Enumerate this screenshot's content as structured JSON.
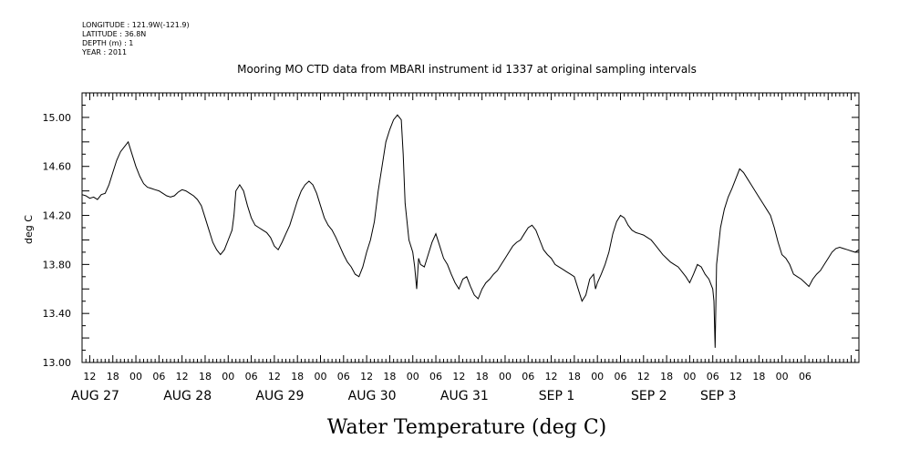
{
  "metadata": {
    "lines": [
      "LONGITUDE : 121.9W(-121.9)",
      "LATITUDE : 36.8N",
      "DEPTH (m) : 1",
      "YEAR : 2011"
    ]
  },
  "chart_data": {
    "type": "line",
    "title": "Mooring MO CTD data from MBARI instrument id 1337 at original sampling intervals",
    "ylabel": "deg C",
    "xlabel": "Water Temperature (deg C)",
    "ylim": [
      13.0,
      15.2
    ],
    "yticks": [
      13.0,
      13.4,
      13.8,
      14.2,
      14.6,
      15.0
    ],
    "ytick_labels": [
      "13.00",
      "13.40",
      "13.80",
      "14.20",
      "14.60",
      "15.00"
    ],
    "x_range_hours": [
      10,
      212
    ],
    "hour_ticks": [
      {
        "h": 12,
        "label": "12"
      },
      {
        "h": 18,
        "label": "18"
      },
      {
        "h": 24,
        "label": "00"
      },
      {
        "h": 30,
        "label": "06"
      },
      {
        "h": 36,
        "label": "12"
      },
      {
        "h": 42,
        "label": "18"
      },
      {
        "h": 48,
        "label": "00"
      },
      {
        "h": 54,
        "label": "06"
      },
      {
        "h": 60,
        "label": "12"
      },
      {
        "h": 66,
        "label": "18"
      },
      {
        "h": 72,
        "label": "00"
      },
      {
        "h": 78,
        "label": "06"
      },
      {
        "h": 84,
        "label": "12"
      },
      {
        "h": 90,
        "label": "18"
      },
      {
        "h": 96,
        "label": "00"
      },
      {
        "h": 102,
        "label": "06"
      },
      {
        "h": 108,
        "label": "12"
      },
      {
        "h": 114,
        "label": "18"
      },
      {
        "h": 120,
        "label": "00"
      },
      {
        "h": 126,
        "label": "06"
      },
      {
        "h": 132,
        "label": "12"
      },
      {
        "h": 138,
        "label": "18"
      },
      {
        "h": 144,
        "label": "00"
      },
      {
        "h": 150,
        "label": "06"
      },
      {
        "h": 156,
        "label": "12"
      },
      {
        "h": 162,
        "label": "18"
      },
      {
        "h": 168,
        "label": "00"
      },
      {
        "h": 174,
        "label": "06"
      },
      {
        "h": 180,
        "label": "12"
      },
      {
        "h": 186,
        "label": "18"
      },
      {
        "h": 192,
        "label": "00"
      },
      {
        "h": 198,
        "label": "06"
      }
    ],
    "day_labels": [
      {
        "h": 12,
        "label": "AUG 27"
      },
      {
        "h": 36,
        "label": "AUG 28"
      },
      {
        "h": 60,
        "label": "AUG 29"
      },
      {
        "h": 84,
        "label": "AUG 30"
      },
      {
        "h": 108,
        "label": "AUG 31"
      },
      {
        "h": 132,
        "label": "SEP  1"
      },
      {
        "h": 156,
        "label": "SEP  2"
      },
      {
        "h": 174,
        "label": "SEP  3"
      }
    ],
    "series": [
      {
        "color": "#000000",
        "points": [
          [
            10,
            14.37
          ],
          [
            11,
            14.36
          ],
          [
            12,
            14.34
          ],
          [
            13,
            14.35
          ],
          [
            14,
            14.33
          ],
          [
            15,
            14.37
          ],
          [
            16,
            14.38
          ],
          [
            17,
            14.45
          ],
          [
            18,
            14.55
          ],
          [
            19,
            14.65
          ],
          [
            20,
            14.72
          ],
          [
            21,
            14.76
          ],
          [
            22,
            14.8
          ],
          [
            23,
            14.7
          ],
          [
            24,
            14.6
          ],
          [
            25,
            14.52
          ],
          [
            26,
            14.46
          ],
          [
            27,
            14.43
          ],
          [
            28,
            14.42
          ],
          [
            29,
            14.41
          ],
          [
            30,
            14.4
          ],
          [
            31,
            14.38
          ],
          [
            32,
            14.36
          ],
          [
            33,
            14.35
          ],
          [
            34,
            14.36
          ],
          [
            35,
            14.39
          ],
          [
            36,
            14.41
          ],
          [
            37,
            14.4
          ],
          [
            38,
            14.38
          ],
          [
            39,
            14.36
          ],
          [
            40,
            14.33
          ],
          [
            41,
            14.28
          ],
          [
            42,
            14.18
          ],
          [
            43,
            14.08
          ],
          [
            44,
            13.98
          ],
          [
            45,
            13.92
          ],
          [
            46,
            13.88
          ],
          [
            47,
            13.92
          ],
          [
            48,
            14.0
          ],
          [
            49,
            14.08
          ],
          [
            49.5,
            14.2
          ],
          [
            50,
            14.4
          ],
          [
            51,
            14.45
          ],
          [
            52,
            14.4
          ],
          [
            53,
            14.28
          ],
          [
            54,
            14.18
          ],
          [
            55,
            14.12
          ],
          [
            56,
            14.1
          ],
          [
            57,
            14.08
          ],
          [
            58,
            14.06
          ],
          [
            59,
            14.02
          ],
          [
            60,
            13.95
          ],
          [
            61,
            13.92
          ],
          [
            62,
            13.98
          ],
          [
            63,
            14.05
          ],
          [
            64,
            14.12
          ],
          [
            65,
            14.22
          ],
          [
            66,
            14.32
          ],
          [
            67,
            14.4
          ],
          [
            68,
            14.45
          ],
          [
            69,
            14.48
          ],
          [
            70,
            14.45
          ],
          [
            71,
            14.38
          ],
          [
            72,
            14.28
          ],
          [
            73,
            14.18
          ],
          [
            74,
            14.12
          ],
          [
            75,
            14.08
          ],
          [
            76,
            14.02
          ],
          [
            77,
            13.95
          ],
          [
            78,
            13.88
          ],
          [
            79,
            13.82
          ],
          [
            80,
            13.78
          ],
          [
            81,
            13.72
          ],
          [
            82,
            13.7
          ],
          [
            83,
            13.78
          ],
          [
            84,
            13.9
          ],
          [
            85,
            14.0
          ],
          [
            86,
            14.15
          ],
          [
            87,
            14.4
          ],
          [
            88,
            14.6
          ],
          [
            89,
            14.8
          ],
          [
            90,
            14.9
          ],
          [
            91,
            14.98
          ],
          [
            92,
            15.02
          ],
          [
            93,
            14.98
          ],
          [
            93.5,
            14.7
          ],
          [
            94,
            14.3
          ],
          [
            95,
            14.0
          ],
          [
            96,
            13.9
          ],
          [
            96.5,
            13.78
          ],
          [
            97,
            13.6
          ],
          [
            97.5,
            13.85
          ],
          [
            98,
            13.8
          ],
          [
            99,
            13.78
          ],
          [
            100,
            13.88
          ],
          [
            101,
            13.98
          ],
          [
            102,
            14.05
          ],
          [
            103,
            13.95
          ],
          [
            104,
            13.85
          ],
          [
            105,
            13.8
          ],
          [
            106,
            13.72
          ],
          [
            107,
            13.65
          ],
          [
            108,
            13.6
          ],
          [
            109,
            13.68
          ],
          [
            110,
            13.7
          ],
          [
            111,
            13.62
          ],
          [
            112,
            13.55
          ],
          [
            113,
            13.52
          ],
          [
            114,
            13.6
          ],
          [
            115,
            13.65
          ],
          [
            116,
            13.68
          ],
          [
            117,
            13.72
          ],
          [
            118,
            13.75
          ],
          [
            119,
            13.8
          ],
          [
            120,
            13.85
          ],
          [
            121,
            13.9
          ],
          [
            122,
            13.95
          ],
          [
            123,
            13.98
          ],
          [
            124,
            14.0
          ],
          [
            125,
            14.05
          ],
          [
            126,
            14.1
          ],
          [
            127,
            14.12
          ],
          [
            128,
            14.08
          ],
          [
            129,
            14.0
          ],
          [
            130,
            13.92
          ],
          [
            131,
            13.88
          ],
          [
            132,
            13.85
          ],
          [
            133,
            13.8
          ],
          [
            134,
            13.78
          ],
          [
            135,
            13.76
          ],
          [
            136,
            13.74
          ],
          [
            137,
            13.72
          ],
          [
            138,
            13.7
          ],
          [
            139,
            13.6
          ],
          [
            140,
            13.5
          ],
          [
            141,
            13.55
          ],
          [
            142,
            13.68
          ],
          [
            143,
            13.72
          ],
          [
            143.5,
            13.6
          ],
          [
            144,
            13.65
          ],
          [
            145,
            13.72
          ],
          [
            146,
            13.8
          ],
          [
            147,
            13.9
          ],
          [
            148,
            14.05
          ],
          [
            149,
            14.15
          ],
          [
            150,
            14.2
          ],
          [
            151,
            14.18
          ],
          [
            152,
            14.12
          ],
          [
            153,
            14.08
          ],
          [
            154,
            14.06
          ],
          [
            155,
            14.05
          ],
          [
            156,
            14.04
          ],
          [
            157,
            14.02
          ],
          [
            158,
            14.0
          ],
          [
            159,
            13.96
          ],
          [
            160,
            13.92
          ],
          [
            161,
            13.88
          ],
          [
            162,
            13.85
          ],
          [
            163,
            13.82
          ],
          [
            164,
            13.8
          ],
          [
            165,
            13.78
          ],
          [
            166,
            13.74
          ],
          [
            167,
            13.7
          ],
          [
            168,
            13.65
          ],
          [
            169,
            13.72
          ],
          [
            170,
            13.8
          ],
          [
            171,
            13.78
          ],
          [
            172,
            13.72
          ],
          [
            173,
            13.68
          ],
          [
            174,
            13.6
          ],
          [
            174.3,
            13.5
          ],
          [
            174.6,
            13.12
          ],
          [
            175,
            13.8
          ],
          [
            176,
            14.1
          ],
          [
            177,
            14.25
          ],
          [
            178,
            14.35
          ],
          [
            179,
            14.42
          ],
          [
            180,
            14.5
          ],
          [
            181,
            14.58
          ],
          [
            182,
            14.55
          ],
          [
            183,
            14.5
          ],
          [
            184,
            14.45
          ],
          [
            185,
            14.4
          ],
          [
            186,
            14.35
          ],
          [
            187,
            14.3
          ],
          [
            188,
            14.25
          ],
          [
            189,
            14.2
          ],
          [
            190,
            14.1
          ],
          [
            191,
            13.98
          ],
          [
            192,
            13.88
          ],
          [
            193,
            13.85
          ],
          [
            194,
            13.8
          ],
          [
            195,
            13.72
          ],
          [
            196,
            13.7
          ],
          [
            197,
            13.68
          ],
          [
            198,
            13.65
          ],
          [
            199,
            13.62
          ],
          [
            200,
            13.68
          ],
          [
            201,
            13.72
          ],
          [
            202,
            13.75
          ],
          [
            203,
            13.8
          ],
          [
            204,
            13.85
          ],
          [
            205,
            13.9
          ],
          [
            206,
            13.93
          ],
          [
            207,
            13.94
          ],
          [
            208,
            13.93
          ],
          [
            209,
            13.92
          ],
          [
            210,
            13.91
          ],
          [
            211,
            13.9
          ],
          [
            212,
            13.92
          ]
        ]
      }
    ]
  }
}
